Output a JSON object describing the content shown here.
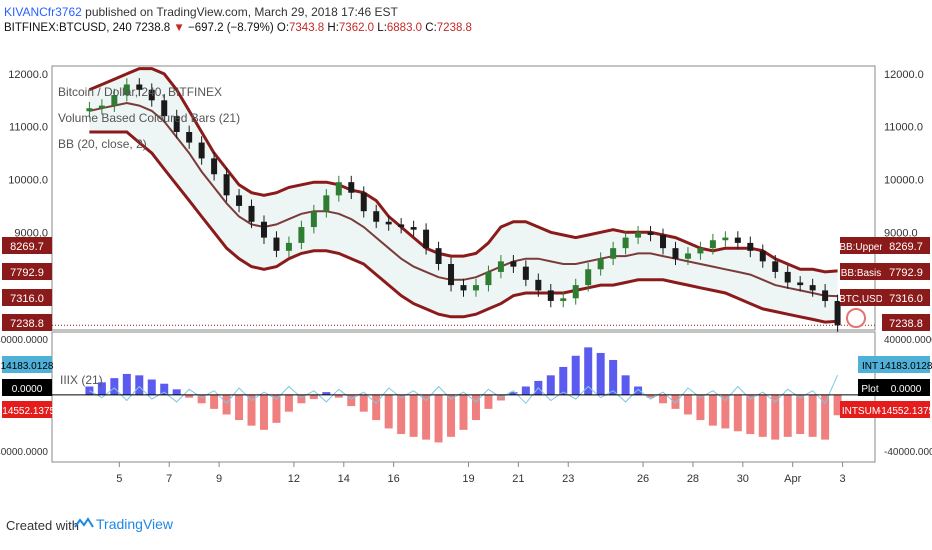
{
  "header": {
    "author": "KIVANCfr3762",
    "published": "published on TradingView.com, March 29, 2018 17:46 EST",
    "symbol": "BITFINEX:BTCUSD, 240",
    "last": "7238.8",
    "change": "−697.2 (−8.79%)",
    "o_label": "O:",
    "o": "7343.8",
    "h_label": "H:",
    "h": "7362.0",
    "l_label": "L:",
    "l": "6883.0",
    "c_label": "C:",
    "c": "7238.8"
  },
  "footer": {
    "created_with": "Created with",
    "brand": "TradingView"
  },
  "colors": {
    "up": "#2e7d32",
    "down": "#1a1a1a",
    "band": "#8b1a1a",
    "basis": "#7a3b3b",
    "pos": "#5b5bf0",
    "neg": "#f08080",
    "line": "#7ec8e3"
  },
  "chart_data": [
    {
      "type": "candlestick",
      "title": "Bitcoin / Dollar, 240, BITFINEX",
      "legend": [
        "Volume Based Coloured Bars (21)",
        "BB (20, close, 2)"
      ],
      "ylim": [
        7150,
        12150
      ],
      "yticks": [
        12000,
        11000,
        10000,
        9000
      ],
      "ytick_labels": [
        "12000.0",
        "11000.0",
        "10000.0",
        "9000.0"
      ],
      "x_labels": [
        "5",
        "7",
        "9",
        "12",
        "14",
        "16",
        "19",
        "21",
        "23",
        "26",
        "28",
        "30",
        "Apr",
        "3"
      ],
      "x_label_pos": [
        2.4,
        6.4,
        10.4,
        16.4,
        20.4,
        24.4,
        30.4,
        34.4,
        38.4,
        44.4,
        48.4,
        52.4,
        56.4,
        60.4
      ],
      "x_range": [
        -3,
        63
      ],
      "closes": [
        11350,
        11400,
        11600,
        11800,
        11700,
        11500,
        11200,
        10900,
        10700,
        10400,
        10100,
        9700,
        9500,
        9200,
        8900,
        8650,
        8800,
        9100,
        9400,
        9700,
        9950,
        9750,
        9400,
        9200,
        9150,
        9100,
        9050,
        8700,
        8400,
        8000,
        7900,
        8000,
        8250,
        8450,
        8350,
        8100,
        7900,
        7700,
        7750,
        8000,
        8300,
        8500,
        8700,
        8900,
        9000,
        8950,
        8700,
        8500,
        8600,
        8700,
        8850,
        8900,
        8800,
        8650,
        8450,
        8250,
        8050,
        8000,
        7900,
        7700,
        7238.8
      ],
      "bands": {
        "upper": [
          11700,
          11800,
          11900,
          12000,
          12100,
          12100,
          12000,
          11700,
          11300,
          10900,
          10500,
          10200,
          9900,
          9750,
          9700,
          9750,
          9850,
          9900,
          9950,
          9950,
          9900,
          9800,
          9750,
          9600,
          9300,
          9100,
          8900,
          8700,
          8600,
          8550,
          8550,
          8600,
          8800,
          9100,
          9200,
          9200,
          9100,
          9000,
          8950,
          8900,
          8950,
          9000,
          9050,
          9000,
          9000,
          9000,
          8950,
          8900,
          8800,
          8700,
          8650,
          8700,
          8700,
          8700,
          8650,
          8500,
          8400,
          8300,
          8300,
          8250,
          8269.7
        ],
        "basis": [
          11300,
          11350,
          11400,
          11450,
          11400,
          11300,
          11100,
          10800,
          10500,
          10150,
          9850,
          9550,
          9300,
          9150,
          9100,
          9150,
          9250,
          9350,
          9400,
          9400,
          9350,
          9250,
          9100,
          8900,
          8700,
          8500,
          8350,
          8250,
          8150,
          8100,
          8100,
          8150,
          8250,
          8350,
          8450,
          8500,
          8500,
          8450,
          8400,
          8400,
          8450,
          8500,
          8550,
          8550,
          8600,
          8600,
          8550,
          8500,
          8450,
          8400,
          8350,
          8300,
          8250,
          8200,
          8100,
          8000,
          7950,
          7900,
          7850,
          7800,
          7792.9
        ],
        "lower": [
          10900,
          10900,
          10900,
          10900,
          10700,
          10500,
          10200,
          9900,
          9600,
          9300,
          9000,
          8700,
          8500,
          8350,
          8300,
          8350,
          8500,
          8600,
          8650,
          8650,
          8600,
          8500,
          8400,
          8200,
          8000,
          7800,
          7650,
          7550,
          7450,
          7400,
          7400,
          7450,
          7550,
          7650,
          7800,
          7850,
          7850,
          7850,
          7850,
          7900,
          7950,
          8000,
          8000,
          8050,
          8100,
          8100,
          8100,
          8050,
          8000,
          7950,
          7900,
          7850,
          7750,
          7650,
          7550,
          7500,
          7450,
          7400,
          7350,
          7300,
          7316.0
        ]
      },
      "price_tags": {
        "upper_label": "BB:Upper",
        "upper": "8269.7",
        "basis_label": "BB:Basis",
        "basis": "7792.9",
        "lower_label": "BTC,USD",
        "lower": "7316.0",
        "last": "7238.8"
      }
    },
    {
      "type": "bar",
      "title": "IIIX (21)",
      "ylim": [
        -48000,
        45000
      ],
      "yticks": [
        40000,
        0,
        -40000
      ],
      "ytick_labels": [
        "40000.0000",
        "0.0000",
        "-40000.0000"
      ],
      "values": [
        6000,
        9000,
        12000,
        15000,
        14000,
        11000,
        8000,
        4000,
        -2000,
        -6000,
        -10000,
        -14000,
        -18000,
        -22000,
        -25000,
        -20000,
        -12000,
        -6000,
        -3000,
        2000,
        -2000,
        -8000,
        -12000,
        -18000,
        -24000,
        -28000,
        -30000,
        -32000,
        -34000,
        -30000,
        -25000,
        -18000,
        -10000,
        -4000,
        2000,
        6000,
        10000,
        14000,
        20000,
        28000,
        34000,
        30000,
        25000,
        14000,
        6000,
        -2000,
        -6000,
        -10000,
        -14000,
        -18000,
        -22000,
        -24000,
        -26000,
        -28000,
        -30000,
        -32000,
        -30000,
        -28000,
        -30000,
        -32000,
        -14552.1375
      ],
      "line": [
        3000,
        -2000,
        5000,
        -4000,
        6000,
        -3000,
        2000,
        -5000,
        4000,
        -2000,
        3000,
        -6000,
        5000,
        -4000,
        2000,
        -3000,
        6000,
        -2000,
        3000,
        -5000,
        4000,
        -3000,
        2000,
        -6000,
        5000,
        -2000,
        3000,
        -4000,
        6000,
        -3000,
        2000,
        -5000,
        4000,
        -2000,
        3000,
        -6000,
        5000,
        -4000,
        2000,
        -3000,
        6000,
        -2000,
        3000,
        -5000,
        4000,
        -3000,
        2000,
        -6000,
        5000,
        -2000,
        3000,
        -4000,
        6000,
        -3000,
        2000,
        -5000,
        4000,
        -2000,
        3000,
        -6000,
        14183.0128
      ],
      "price_tags": {
        "int_label": "INT",
        "int": "14183.0128",
        "plot_label": "Plot",
        "plot": "0.0000",
        "intsum_label": "INTSUM",
        "intsum": "-14552.1375"
      }
    }
  ]
}
